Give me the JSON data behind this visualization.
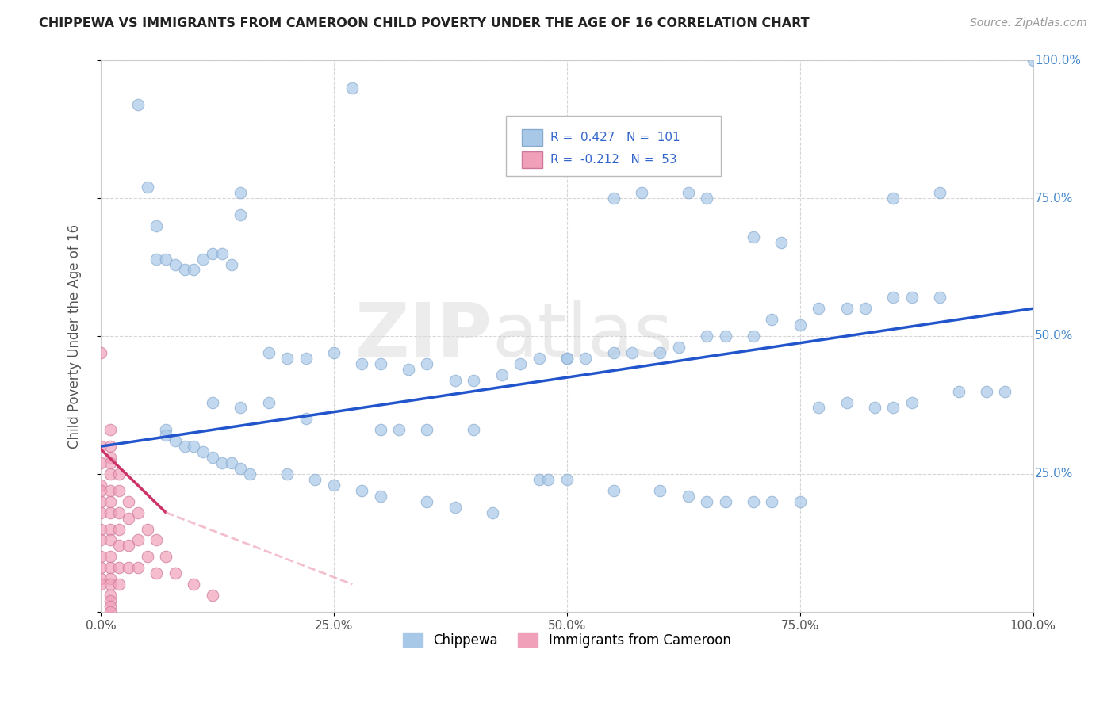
{
  "title": "CHIPPEWA VS IMMIGRANTS FROM CAMEROON CHILD POVERTY UNDER THE AGE OF 16 CORRELATION CHART",
  "source": "Source: ZipAtlas.com",
  "ylabel": "Child Poverty Under the Age of 16",
  "xlim": [
    0.0,
    1.0
  ],
  "ylim": [
    0.0,
    1.0
  ],
  "xticks": [
    0.0,
    0.25,
    0.5,
    0.75,
    1.0
  ],
  "yticks": [
    0.0,
    0.25,
    0.5,
    0.75,
    1.0
  ],
  "xticklabels": [
    "0.0%",
    "25.0%",
    "50.0%",
    "75.0%",
    "100.0%"
  ],
  "yticklabels_left": [
    "",
    "",
    "",
    "",
    ""
  ],
  "yticklabels_right": [
    "",
    "25.0%",
    "50.0%",
    "75.0%",
    "100.0%"
  ],
  "chippewa_color": "#A8C8E8",
  "cameroon_color": "#F0A0B8",
  "trend_chippewa_color": "#2255CC",
  "trend_cameroon_color": "#CC3366",
  "trend_cameroon_dash_color": "#F0B0C0",
  "background_color": "#FFFFFF",
  "grid_color": "#CCCCCC",
  "watermark_zip": "ZIP",
  "watermark_atlas": "atlas",
  "right_label_color": "#4488CC",
  "legend_r_chippewa": "0.427",
  "legend_n_chippewa": "101",
  "legend_r_cameroon": "-0.212",
  "legend_n_cameroon": "53",
  "chippewa_x": [
    0.27,
    0.04,
    0.05,
    0.06,
    0.15,
    0.15,
    0.06,
    0.07,
    0.08,
    0.09,
    0.1,
    0.11,
    0.12,
    0.13,
    0.14,
    0.18,
    0.2,
    0.22,
    0.25,
    0.28,
    0.3,
    0.33,
    0.35,
    0.38,
    0.4,
    0.43,
    0.45,
    0.47,
    0.5,
    0.52,
    0.55,
    0.57,
    0.6,
    0.62,
    0.65,
    0.67,
    0.7,
    0.72,
    0.75,
    0.77,
    0.8,
    0.82,
    0.85,
    0.87,
    0.9,
    0.92,
    0.95,
    0.97,
    1.0,
    0.5,
    0.55,
    0.6,
    0.63,
    0.65,
    0.67,
    0.7,
    0.72,
    0.75,
    0.77,
    0.8,
    0.83,
    0.85,
    0.87,
    0.63,
    0.65,
    0.55,
    0.58,
    0.85,
    0.9,
    0.47,
    0.48,
    0.5,
    0.7,
    0.73,
    0.3,
    0.32,
    0.35,
    0.4,
    0.12,
    0.15,
    0.18,
    0.22,
    0.07,
    0.07,
    0.08,
    0.09,
    0.1,
    0.11,
    0.12,
    0.13,
    0.14,
    0.15,
    0.16,
    0.2,
    0.23,
    0.25,
    0.28,
    0.3,
    0.35,
    0.38,
    0.42
  ],
  "chippewa_y": [
    0.95,
    0.92,
    0.77,
    0.7,
    0.76,
    0.72,
    0.64,
    0.64,
    0.63,
    0.62,
    0.62,
    0.64,
    0.65,
    0.65,
    0.63,
    0.47,
    0.46,
    0.46,
    0.47,
    0.45,
    0.45,
    0.44,
    0.45,
    0.42,
    0.42,
    0.43,
    0.45,
    0.46,
    0.46,
    0.46,
    0.47,
    0.47,
    0.47,
    0.48,
    0.5,
    0.5,
    0.5,
    0.53,
    0.52,
    0.55,
    0.55,
    0.55,
    0.57,
    0.57,
    0.57,
    0.4,
    0.4,
    0.4,
    1.0,
    0.24,
    0.22,
    0.22,
    0.21,
    0.2,
    0.2,
    0.2,
    0.2,
    0.2,
    0.37,
    0.38,
    0.37,
    0.37,
    0.38,
    0.76,
    0.75,
    0.75,
    0.76,
    0.75,
    0.76,
    0.24,
    0.24,
    0.46,
    0.68,
    0.67,
    0.33,
    0.33,
    0.33,
    0.33,
    0.38,
    0.37,
    0.38,
    0.35,
    0.33,
    0.32,
    0.31,
    0.3,
    0.3,
    0.29,
    0.28,
    0.27,
    0.27,
    0.26,
    0.25,
    0.25,
    0.24,
    0.23,
    0.22,
    0.21,
    0.2,
    0.19,
    0.18
  ],
  "cameroon_x": [
    0.0,
    0.0,
    0.0,
    0.0,
    0.0,
    0.0,
    0.0,
    0.0,
    0.0,
    0.0,
    0.0,
    0.0,
    0.0,
    0.01,
    0.01,
    0.01,
    0.01,
    0.01,
    0.01,
    0.01,
    0.01,
    0.01,
    0.01,
    0.01,
    0.01,
    0.01,
    0.01,
    0.01,
    0.01,
    0.01,
    0.01,
    0.02,
    0.02,
    0.02,
    0.02,
    0.02,
    0.02,
    0.02,
    0.03,
    0.03,
    0.03,
    0.03,
    0.04,
    0.04,
    0.04,
    0.05,
    0.05,
    0.06,
    0.06,
    0.07,
    0.08,
    0.1,
    0.12
  ],
  "cameroon_y": [
    0.47,
    0.3,
    0.27,
    0.23,
    0.22,
    0.2,
    0.18,
    0.15,
    0.13,
    0.1,
    0.08,
    0.06,
    0.05,
    0.33,
    0.3,
    0.28,
    0.27,
    0.25,
    0.22,
    0.2,
    0.18,
    0.15,
    0.13,
    0.1,
    0.08,
    0.06,
    0.05,
    0.03,
    0.02,
    0.01,
    0.0,
    0.25,
    0.22,
    0.18,
    0.15,
    0.12,
    0.08,
    0.05,
    0.2,
    0.17,
    0.12,
    0.08,
    0.18,
    0.13,
    0.08,
    0.15,
    0.1,
    0.13,
    0.07,
    0.1,
    0.07,
    0.05,
    0.03
  ],
  "chip_trend_x0": 0.0,
  "chip_trend_y0": 0.3,
  "chip_trend_x1": 1.0,
  "chip_trend_y1": 0.55,
  "cam_trend_solid_x0": 0.0,
  "cam_trend_solid_y0": 0.295,
  "cam_trend_solid_x1": 0.07,
  "cam_trend_solid_y1": 0.18,
  "cam_trend_dash_x0": 0.07,
  "cam_trend_dash_y0": 0.18,
  "cam_trend_dash_x1": 0.27,
  "cam_trend_dash_y1": 0.05
}
